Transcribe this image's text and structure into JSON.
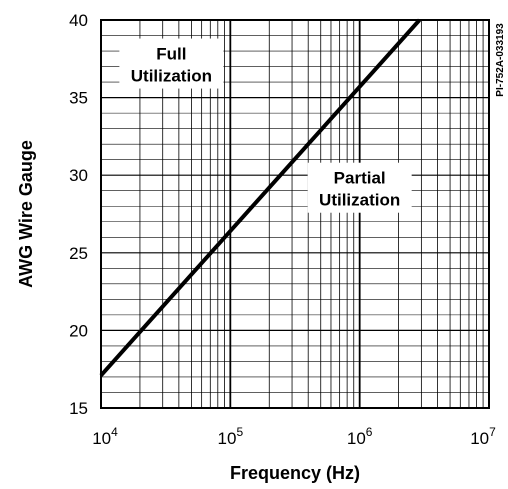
{
  "chart_data": {
    "type": "line",
    "title": "",
    "code_label": "PI-752A-033193",
    "xlabel": "Frequency (Hz)",
    "ylabel": "AWG Wire Gauge",
    "x_scale": "log",
    "xlim": [
      10000,
      10000000
    ],
    "ylim": [
      15,
      40
    ],
    "grid": true,
    "x_ticks": [
      {
        "value": 10000,
        "base": "10",
        "exp": "4"
      },
      {
        "value": 100000,
        "base": "10",
        "exp": "5"
      },
      {
        "value": 1000000,
        "base": "10",
        "exp": "6"
      },
      {
        "value": 10000000,
        "base": "10",
        "exp": "7"
      }
    ],
    "y_ticks": [
      15,
      20,
      25,
      30,
      35,
      40
    ],
    "series": [
      {
        "x": [
          10000,
          100000,
          1000000,
          2900000
        ],
        "y": [
          17.1,
          26.4,
          35.7,
          40
        ]
      }
    ],
    "regions": [
      {
        "line1": "Full",
        "line2": "Utilization",
        "x": 35000,
        "y": 37
      },
      {
        "line1": "Partial",
        "line2": "Utilization",
        "x": 1000000,
        "y": 29
      }
    ]
  }
}
